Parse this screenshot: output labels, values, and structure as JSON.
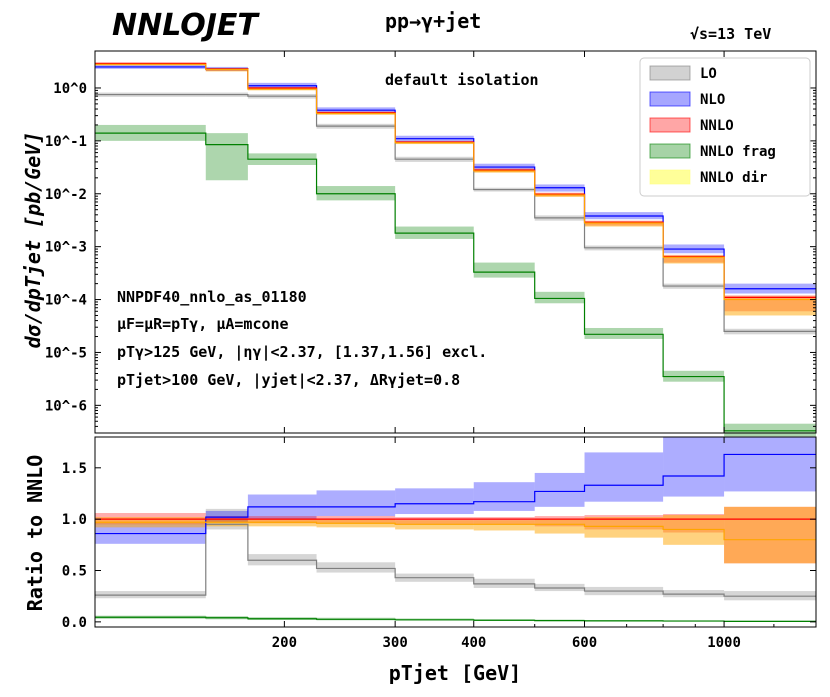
{
  "header": {
    "logo": "NNLOJET",
    "process": "pp→γ+jet",
    "energy": "√s=13 TeV"
  },
  "annotations": {
    "isolation": "default isolation",
    "pdf": "NNPDF40_nnlo_as_01180",
    "scales": "μF=μR=pTγ, μA=mcone",
    "cut_photon": "pTγ>125 GeV, |ηγ|<2.37, [1.37,1.56] excl.",
    "cut_jet": "pTjet>100 GeV, |yjet|<2.37, ΔRγjet=0.8"
  },
  "colors": {
    "LO": "#7f7f7f",
    "NLO": "#0000ff",
    "NNLO": "#ff0000",
    "NNLO frag": "#008000",
    "NNLO dir": "#ffa500",
    "NNLO dir legend": "#ffff80"
  },
  "chart_data": [
    {
      "type": "line",
      "panel": "main",
      "ylabel": "dσ/dpTjet [pb/GeV]",
      "yscale": "log",
      "ylim": [
        3e-07,
        5
      ],
      "xscale": "log",
      "xlim": [
        100,
        1400
      ],
      "bin_edges": [
        100,
        150,
        175,
        225,
        300,
        400,
        500,
        600,
        800,
        1000,
        1400
      ],
      "yticks": [
        "10^0",
        "10^-1",
        "10^-2",
        "10^-3",
        "10^-4",
        "10^-5",
        "10^-6"
      ],
      "legend": [
        "LO",
        "NLO",
        "NNLO",
        "NNLO frag",
        "NNLO dir"
      ],
      "legend_position": "top-right",
      "series": [
        {
          "name": "LO",
          "values": [
            0.75,
            0.75,
            0.75,
            0.7,
            0.19,
            0.045,
            0.012,
            0.0035,
            0.00095,
            0.00018,
            2.5e-05
          ],
          "lo": [
            0.68,
            0.68,
            0.68,
            0.63,
            0.17,
            0.04,
            0.011,
            0.0031,
            0.00085,
            0.00016,
            2.2e-05
          ],
          "hi": [
            0.82,
            0.82,
            0.82,
            0.77,
            0.21,
            0.05,
            0.013,
            0.0039,
            0.00105,
            0.0002,
            2.8e-05
          ]
        },
        {
          "name": "NLO",
          "values": [
            2.5,
            2.5,
            2.3,
            1.1,
            0.38,
            0.11,
            0.032,
            0.013,
            0.0038,
            0.0009,
            0.00016
          ],
          "lo": [
            2.3,
            2.3,
            2.1,
            1.0,
            0.34,
            0.095,
            0.028,
            0.011,
            0.0033,
            0.00075,
            0.00013
          ],
          "hi": [
            2.7,
            2.7,
            2.5,
            1.25,
            0.43,
            0.125,
            0.037,
            0.015,
            0.0045,
            0.0011,
            0.0002
          ]
        },
        {
          "name": "NNLO",
          "values": [
            2.9,
            2.9,
            2.3,
            1.0,
            0.34,
            0.095,
            0.028,
            0.0098,
            0.0029,
            0.00065,
            0.00011
          ],
          "lo": [
            2.75,
            2.75,
            2.1,
            0.95,
            0.32,
            0.09,
            0.026,
            0.009,
            0.0025,
            0.0005,
            6e-05
          ],
          "hi": [
            3.05,
            3.05,
            2.4,
            1.05,
            0.36,
            0.1,
            0.03,
            0.0105,
            0.0031,
            0.0007,
            0.00012
          ]
        },
        {
          "name": "NNLO frag",
          "values": [
            0.14,
            0.14,
            0.085,
            0.045,
            0.01,
            0.0018,
            0.00033,
            0.000105,
            2.2e-05,
            3.5e-06,
            3.3e-07
          ],
          "lo": [
            0.1,
            0.1,
            0.018,
            0.035,
            0.0075,
            0.0014,
            0.00026,
            8.5e-05,
            1.8e-05,
            2.8e-06,
            2.6e-07
          ],
          "hi": [
            0.2,
            0.2,
            0.14,
            0.058,
            0.014,
            0.0024,
            0.0005,
            0.00014,
            2.9e-05,
            4.5e-06,
            4.5e-07
          ]
        },
        {
          "name": "NNLO dir",
          "values": [
            2.8,
            2.8,
            2.25,
            0.95,
            0.33,
            0.092,
            0.027,
            0.0095,
            0.0028,
            0.00063,
            0.0001
          ],
          "lo": [
            2.65,
            2.65,
            2.05,
            0.9,
            0.31,
            0.087,
            0.025,
            0.0087,
            0.0024,
            0.00048,
            5e-05
          ],
          "hi": [
            2.95,
            2.95,
            2.35,
            1.0,
            0.35,
            0.097,
            0.029,
            0.0102,
            0.003,
            0.00068,
            0.000115
          ]
        }
      ]
    },
    {
      "type": "line",
      "panel": "ratio",
      "ylabel": "Ratio to NNLO",
      "xlabel": "pTjet [GeV]",
      "xscale": "log",
      "xlim": [
        100,
        1400
      ],
      "ylim": [
        -0.05,
        1.8
      ],
      "bin_edges": [
        100,
        150,
        175,
        225,
        300,
        400,
        500,
        600,
        800,
        1000,
        1400
      ],
      "xticks": [
        "200",
        "300",
        "400",
        "600",
        "1000"
      ],
      "yticks": [
        "0.0",
        "0.5",
        "1.0",
        "1.5"
      ],
      "series": [
        {
          "name": "LO",
          "values": [
            0.26,
            0.95,
            0.6,
            0.52,
            0.43,
            0.37,
            0.33,
            0.3,
            0.27,
            0.25
          ],
          "lo": [
            0.23,
            0.9,
            0.55,
            0.48,
            0.39,
            0.33,
            0.3,
            0.26,
            0.24,
            0.21
          ],
          "hi": [
            0.3,
            1.1,
            0.66,
            0.58,
            0.47,
            0.42,
            0.37,
            0.34,
            0.31,
            0.3
          ]
        },
        {
          "name": "NLO",
          "values": [
            0.86,
            1.02,
            1.12,
            1.12,
            1.15,
            1.17,
            1.27,
            1.33,
            1.42,
            1.63
          ],
          "lo": [
            0.76,
            0.97,
            1.0,
            1.03,
            1.05,
            1.08,
            1.12,
            1.17,
            1.22,
            1.27
          ],
          "hi": [
            0.96,
            1.08,
            1.24,
            1.28,
            1.3,
            1.36,
            1.45,
            1.65,
            1.8,
            1.8
          ]
        },
        {
          "name": "NNLO",
          "values": [
            1.0,
            1.0,
            1.0,
            1.0,
            1.0,
            1.0,
            1.0,
            1.0,
            1.0,
            1.0
          ],
          "lo": [
            0.95,
            0.97,
            0.96,
            0.96,
            0.95,
            0.95,
            0.93,
            0.9,
            0.87,
            0.57
          ],
          "hi": [
            1.06,
            1.03,
            1.03,
            1.03,
            1.02,
            1.02,
            1.03,
            1.04,
            1.05,
            1.12
          ]
        },
        {
          "name": "NNLO frag",
          "values": [
            0.045,
            0.04,
            0.03,
            0.025,
            0.02,
            0.015,
            0.012,
            0.01,
            0.008,
            0.005
          ],
          "lo": [
            0.03,
            0.025,
            0.018,
            0.015,
            0.012,
            0.009,
            0.007,
            0.005,
            0.004,
            0.002
          ],
          "hi": [
            0.06,
            0.055,
            0.045,
            0.04,
            0.033,
            0.027,
            0.022,
            0.018,
            0.015,
            0.012
          ]
        },
        {
          "name": "NNLO dir",
          "values": [
            0.97,
            0.97,
            0.97,
            0.96,
            0.95,
            0.95,
            0.95,
            0.93,
            0.9,
            0.8
          ],
          "lo": [
            0.92,
            0.93,
            0.93,
            0.92,
            0.9,
            0.89,
            0.86,
            0.82,
            0.75,
            0.57
          ],
          "hi": [
            1.02,
            1.0,
            1.0,
            1.0,
            0.99,
            0.99,
            1.0,
            1.02,
            1.04,
            1.12
          ]
        }
      ]
    }
  ]
}
